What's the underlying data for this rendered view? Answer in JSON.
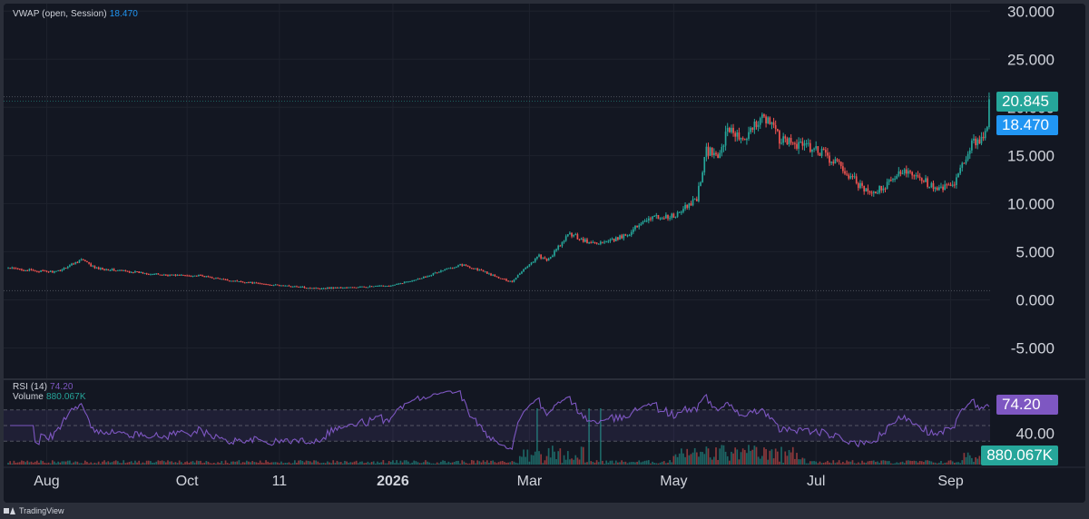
{
  "chart_data": [
    {
      "type": "candlestick",
      "ylim": [
        -7.5,
        30.4
      ],
      "y_ticks": [
        "30.000",
        "25.000",
        "20.000",
        "15.000",
        "10.000",
        "5.000",
        "0.000",
        "-5.000"
      ],
      "y_tick_values": [
        30,
        25,
        20,
        15,
        10,
        5,
        0,
        -5
      ],
      "x_tick_labels": [
        "Aug",
        "Oct",
        "11",
        "2026",
        "Mar",
        "May",
        "Jul",
        "Sep"
      ],
      "x_tick_bold": [
        false,
        false,
        false,
        true,
        false,
        false,
        false,
        false
      ],
      "x_tick_bar_index": [
        20,
        93,
        141,
        200,
        271,
        346,
        420,
        490
      ],
      "bar_count": 511,
      "last_price": 20.845,
      "price_high_line": 21.1,
      "price_low_line": 0.95,
      "anchors": [
        [
          0,
          3.3
        ],
        [
          15,
          3.0
        ],
        [
          25,
          2.9
        ],
        [
          38,
          4.2
        ],
        [
          45,
          3.3
        ],
        [
          60,
          3.0
        ],
        [
          80,
          2.6
        ],
        [
          100,
          2.5
        ],
        [
          115,
          2.0
        ],
        [
          135,
          1.6
        ],
        [
          160,
          1.2
        ],
        [
          180,
          1.3
        ],
        [
          200,
          1.5
        ],
        [
          215,
          2.3
        ],
        [
          228,
          3.2
        ],
        [
          235,
          3.7
        ],
        [
          245,
          3.1
        ],
        [
          256,
          2.2
        ],
        [
          262,
          1.9
        ],
        [
          266,
          2.8
        ],
        [
          276,
          4.6
        ],
        [
          280,
          4.0
        ],
        [
          292,
          6.9
        ],
        [
          302,
          5.9
        ],
        [
          312,
          6.0
        ],
        [
          322,
          6.8
        ],
        [
          332,
          8.5
        ],
        [
          347,
          8.7
        ],
        [
          358,
          10.6
        ],
        [
          363,
          15.5
        ],
        [
          369,
          14.9
        ],
        [
          375,
          18.0
        ],
        [
          383,
          16.2
        ],
        [
          392,
          19.5
        ],
        [
          402,
          16.5
        ],
        [
          412,
          16.2
        ],
        [
          422,
          15.4
        ],
        [
          432,
          13.9
        ],
        [
          440,
          12.4
        ],
        [
          447,
          11.0
        ],
        [
          456,
          11.7
        ],
        [
          466,
          13.6
        ],
        [
          474,
          12.9
        ],
        [
          482,
          11.4
        ],
        [
          492,
          11.9
        ],
        [
          500,
          15.9
        ],
        [
          510,
          17.7
        ],
        [
          516,
          16.2
        ],
        [
          522,
          17.2
        ],
        [
          526,
          20.8
        ]
      ],
      "volume_value": "880.067K"
    },
    {
      "type": "line",
      "ylim": [
        0,
        100
      ],
      "series": [
        {
          "name": "RSI (14)",
          "last": 74.2
        }
      ],
      "y_ticks": [
        "80.00",
        "40.00"
      ],
      "y_tick_values": [
        80,
        40
      ],
      "band": [
        30,
        70
      ],
      "mid": 50
    }
  ],
  "legend": {
    "vwap_name": "VWAP (open, Session)",
    "vwap_value": "18.470",
    "rsi_name": "RSI (14)",
    "rsi_value": "74.20",
    "volume_name": "Volume",
    "volume_value": "880.067K"
  },
  "price_tags": {
    "last_price": "20.845",
    "vwap": "18.470",
    "rsi": "74.20",
    "volume": "880.067K"
  },
  "colors": {
    "background": "#131722",
    "frame": "#2a2e39",
    "up": "#26a69a",
    "down": "#ef5350",
    "rsi_line": "#7e57c2",
    "vwap_tag": "#2196f3",
    "text": "#d1d4dc"
  },
  "brand": "TradingView"
}
